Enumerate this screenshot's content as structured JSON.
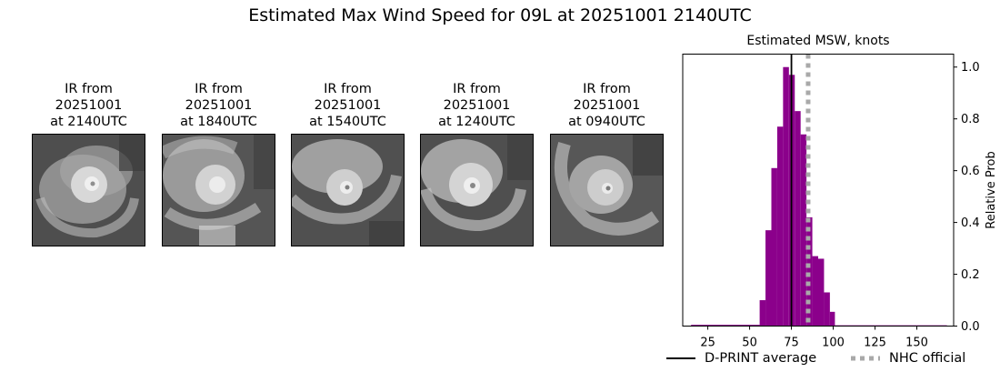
{
  "title": "Estimated Max Wind Speed for 09L at 20251001 2140UTC",
  "panels": [
    {
      "line1": "IR from",
      "line2": "20251001",
      "line3": "at 2140UTC",
      "icon": "satellite-ir-image"
    },
    {
      "line1": "IR from",
      "line2": "20251001",
      "line3": "at 1840UTC",
      "icon": "satellite-ir-image"
    },
    {
      "line1": "IR from",
      "line2": "20251001",
      "line3": "at 1540UTC",
      "icon": "satellite-ir-image"
    },
    {
      "line1": "IR from",
      "line2": "20251001",
      "line3": "at 1240UTC",
      "icon": "satellite-ir-image"
    },
    {
      "line1": "IR from",
      "line2": "20251001",
      "line3": "at 0940UTC",
      "icon": "satellite-ir-image"
    }
  ],
  "chart_data": {
    "type": "bar",
    "title": "Estimated MSW, knots",
    "xlabel": "",
    "ylabel": "Relative Prob",
    "xlim": [
      10,
      172
    ],
    "ylim": [
      0,
      1.05
    ],
    "xticks": [
      25,
      50,
      75,
      100,
      125,
      150
    ],
    "yticks": [
      0.0,
      0.2,
      0.4,
      0.6,
      0.8,
      1.0
    ],
    "ytick_labels": [
      "0.0",
      "0.2",
      "0.4",
      "0.6",
      "0.8",
      "1.0"
    ],
    "y_axis_side": "right",
    "bar_color": "#8b008b",
    "bin_width": 3.5,
    "bins": [
      {
        "x0": 15,
        "x1": 56,
        "value": 0.005
      },
      {
        "x0": 56,
        "x1": 59.5,
        "value": 0.1
      },
      {
        "x0": 59.5,
        "x1": 63,
        "value": 0.37
      },
      {
        "x0": 63,
        "x1": 66.5,
        "value": 0.61
      },
      {
        "x0": 66.5,
        "x1": 70,
        "value": 0.77
      },
      {
        "x0": 70,
        "x1": 73.5,
        "value": 1.0
      },
      {
        "x0": 73.5,
        "x1": 77,
        "value": 0.97
      },
      {
        "x0": 77,
        "x1": 80.5,
        "value": 0.83
      },
      {
        "x0": 80.5,
        "x1": 84,
        "value": 0.74
      },
      {
        "x0": 84,
        "x1": 87.5,
        "value": 0.42
      },
      {
        "x0": 87.5,
        "x1": 91,
        "value": 0.27
      },
      {
        "x0": 91,
        "x1": 94.5,
        "value": 0.26
      },
      {
        "x0": 94.5,
        "x1": 98,
        "value": 0.13
      },
      {
        "x0": 98,
        "x1": 101,
        "value": 0.055
      },
      {
        "x0": 101,
        "x1": 168,
        "value": 0.003
      }
    ],
    "lines": [
      {
        "name": "D-PRINT average",
        "x": 75,
        "color": "#000000",
        "style": "solid"
      },
      {
        "name": "NHC official",
        "x": 85,
        "color": "#a9a9a9",
        "style": "dotted"
      }
    ],
    "legend": {
      "placement": "bottom",
      "entries": [
        "D-PRINT average",
        "NHC official"
      ]
    }
  }
}
